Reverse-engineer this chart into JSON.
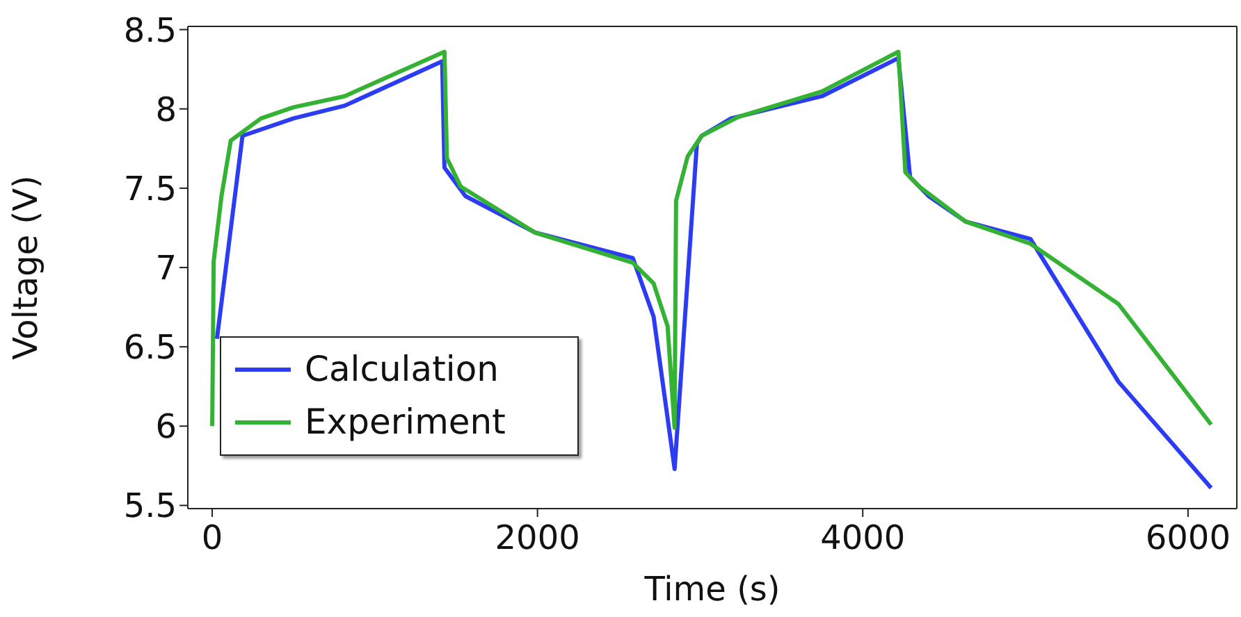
{
  "chart_data": {
    "type": "line",
    "xlabel": "Time (s)",
    "ylabel": "Voltage (V)",
    "xlim": [
      -150,
      6300
    ],
    "xticks": [
      0,
      2000,
      4000,
      6000
    ],
    "ylim": [
      5.48,
      8.52
    ],
    "yticks": [
      5.5,
      6,
      6.5,
      7,
      7.5,
      8,
      8.5
    ],
    "legend": "bottom left",
    "marker": "none",
    "line_style": "solid",
    "series": [
      {
        "name": "Calculation",
        "color": "#2b3cf2",
        "x": [
          29,
          186,
          500,
          814,
          1414,
          1428,
          1557,
          1986,
          2586,
          2714,
          2843,
          2980,
          3009,
          3191,
          3749,
          4219,
          4291,
          4405,
          4632,
          5031,
          5572,
          6142
        ],
        "values": [
          6.55,
          7.83,
          7.94,
          8.02,
          8.3,
          7.63,
          7.45,
          7.22,
          7.06,
          6.69,
          5.73,
          7.78,
          7.83,
          7.94,
          8.08,
          8.32,
          7.57,
          7.45,
          7.29,
          7.18,
          6.28,
          5.61
        ]
      },
      {
        "name": "Experiment",
        "color": "#33b233",
        "x": [
          0,
          9,
          57,
          114,
          300,
          500,
          814,
          1428,
          1443,
          1528,
          1986,
          2586,
          2714,
          2800,
          2843,
          2852,
          2923,
          3009,
          3236,
          3749,
          4219,
          4262,
          4348,
          4632,
          5031,
          5572,
          6142
        ],
        "values": [
          6.0,
          7.04,
          7.45,
          7.8,
          7.94,
          8.01,
          8.08,
          8.36,
          7.69,
          7.51,
          7.22,
          7.03,
          6.9,
          6.63,
          5.99,
          7.42,
          7.7,
          7.83,
          7.95,
          8.11,
          8.36,
          7.6,
          7.51,
          7.29,
          7.15,
          6.77,
          6.01
        ]
      }
    ]
  }
}
